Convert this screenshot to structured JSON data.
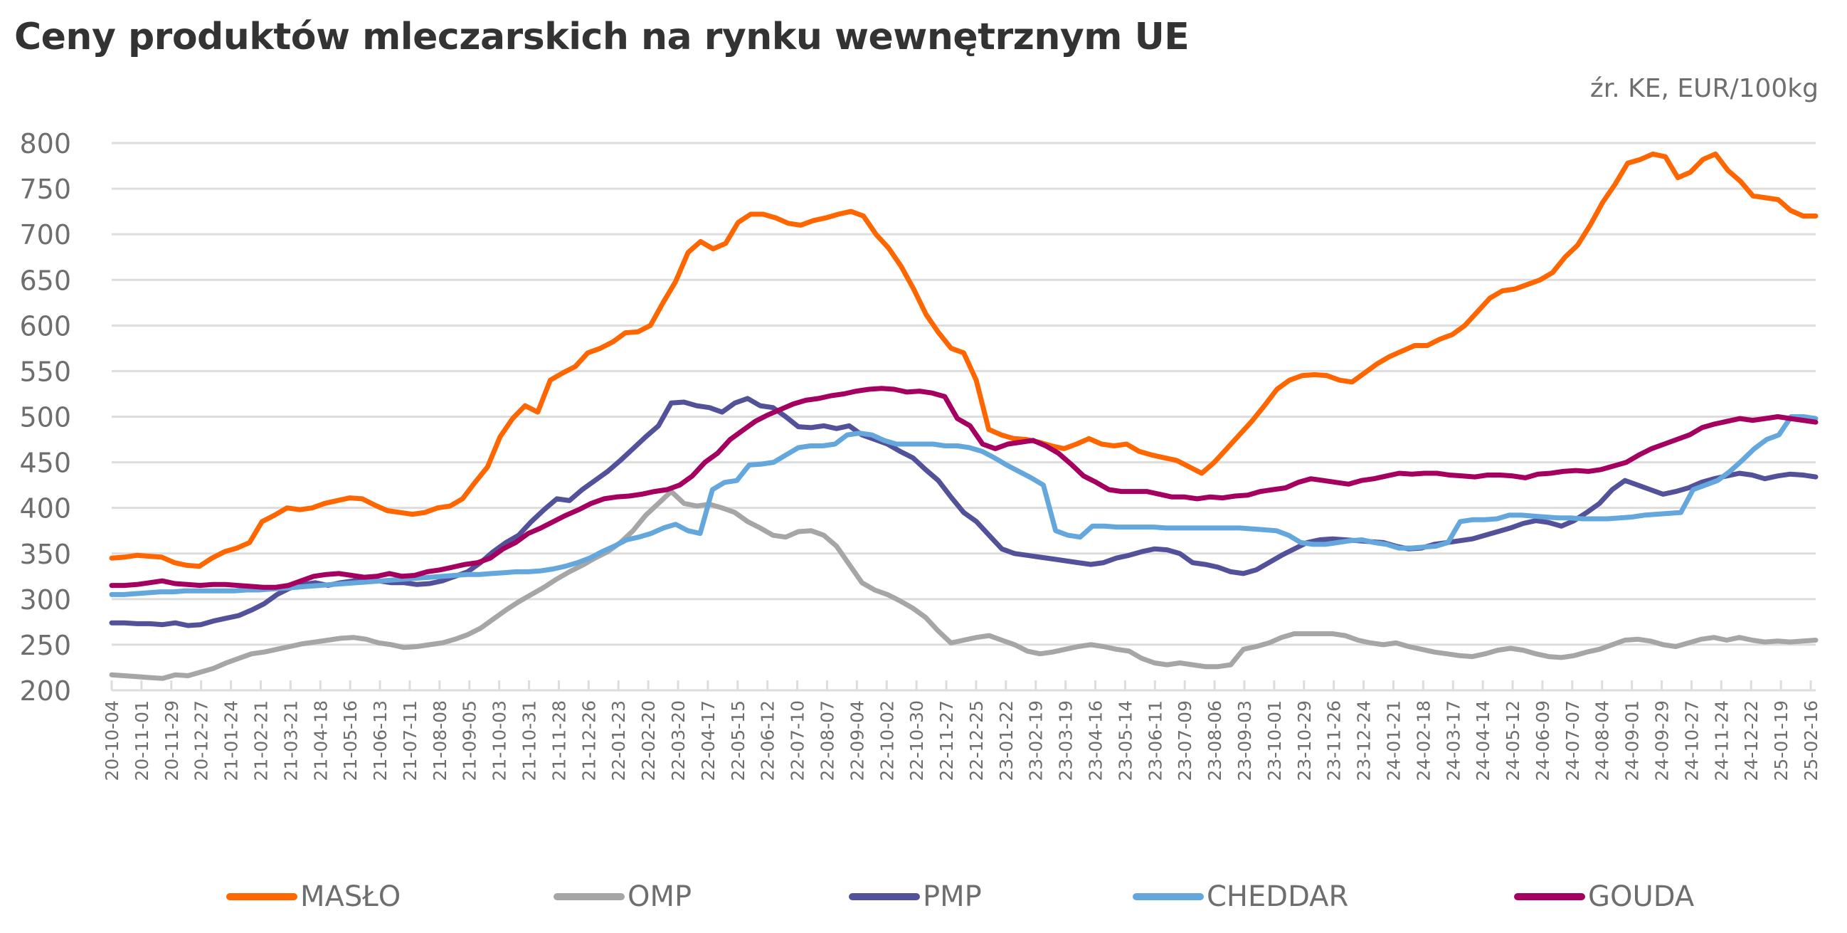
{
  "title": "Ceny produktów mleczarskich na rynku wewnętrznym UE",
  "subtitle": "źr. KE, EUR/100kg",
  "chart_data": {
    "type": "line",
    "title": "Ceny produktów mleczarskich na rynku wewnętrznym UE",
    "subtitle": "źr. KE, EUR/100kg",
    "xlabel": "",
    "ylabel": "EUR/100kg",
    "ylim": [
      200,
      800
    ],
    "yticks": [
      800,
      750,
      700,
      650,
      600,
      550,
      500,
      450,
      400,
      350,
      300,
      250,
      200
    ],
    "grid": true,
    "legend_position": "bottom",
    "x_tick_labels": [
      "20-10-04",
      "20-11-01",
      "20-11-29",
      "20-12-27",
      "21-01-24",
      "21-02-21",
      "21-03-21",
      "21-04-18",
      "21-05-16",
      "21-06-13",
      "21-07-11",
      "21-08-08",
      "21-09-05",
      "21-10-03",
      "21-10-31",
      "21-11-28",
      "21-12-26",
      "22-01-23",
      "22-02-20",
      "22-03-20",
      "22-04-17",
      "22-05-15",
      "22-06-12",
      "22-07-10",
      "22-08-07",
      "22-09-04",
      "22-10-02",
      "22-10-30",
      "22-11-27",
      "22-12-25",
      "23-01-22",
      "23-02-19",
      "23-03-19",
      "23-04-16",
      "23-05-14",
      "23-06-11",
      "23-07-09",
      "23-08-06",
      "23-09-03",
      "23-10-01",
      "23-10-29",
      "23-11-26",
      "23-12-24",
      "24-01-21",
      "24-02-18",
      "24-03-17",
      "24-04-14",
      "24-05-12",
      "24-06-09",
      "24-07-07",
      "24-08-04",
      "24-09-01",
      "24-09-29",
      "24-10-27",
      "24-11-24",
      "24-12-22",
      "25-01-19",
      "25-02-16"
    ],
    "series": [
      {
        "name": "MASŁO",
        "color": "#ff6600",
        "values": [
          345,
          346,
          348,
          347,
          346,
          340,
          337,
          336,
          345,
          352,
          356,
          362,
          385,
          392,
          400,
          398,
          400,
          405,
          408,
          411,
          410,
          403,
          397,
          395,
          393,
          395,
          400,
          402,
          410,
          428,
          445,
          478,
          498,
          512,
          505,
          540,
          548,
          555,
          570,
          575,
          582,
          592,
          593,
          600,
          625,
          648,
          680,
          692,
          684,
          690,
          713,
          722,
          722,
          718,
          712,
          710,
          715,
          718,
          722,
          725,
          720,
          700,
          685,
          665,
          640,
          612,
          592,
          575,
          570,
          540,
          486,
          480,
          476,
          475,
          472,
          468,
          465,
          470,
          476,
          470,
          468,
          470,
          462,
          458,
          455,
          452,
          445,
          438,
          450,
          465,
          480,
          495,
          512,
          530,
          540,
          545,
          546,
          545,
          540,
          538,
          548,
          558,
          566,
          572,
          578,
          578,
          585,
          590,
          600,
          615,
          630,
          638,
          640,
          645,
          650,
          658,
          675,
          688,
          710,
          735,
          755,
          778,
          782,
          788,
          785,
          762,
          768,
          782,
          788,
          770,
          758,
          742,
          740,
          738,
          726,
          720,
          720
        ]
      },
      {
        "name": "OMP",
        "color": "#a6a6a6",
        "values": [
          217,
          216,
          215,
          214,
          213,
          217,
          216,
          220,
          224,
          230,
          235,
          240,
          242,
          245,
          248,
          251,
          253,
          255,
          257,
          258,
          256,
          252,
          250,
          247,
          248,
          250,
          252,
          256,
          261,
          268,
          278,
          288,
          297,
          305,
          313,
          322,
          330,
          337,
          345,
          352,
          362,
          375,
          392,
          405,
          418,
          405,
          402,
          404,
          400,
          395,
          385,
          378,
          370,
          368,
          374,
          375,
          370,
          358,
          338,
          318,
          310,
          305,
          298,
          290,
          280,
          265,
          252,
          255,
          258,
          260,
          255,
          250,
          243,
          240,
          242,
          245,
          248,
          250,
          248,
          245,
          243,
          235,
          230,
          228,
          230,
          228,
          226,
          226,
          228,
          245,
          248,
          252,
          258,
          262,
          262,
          262,
          262,
          260,
          255,
          252,
          250,
          252,
          248,
          245,
          242,
          240,
          238,
          237,
          240,
          244,
          246,
          244,
          240,
          237,
          236,
          238,
          242,
          245,
          250,
          255,
          256,
          254,
          250,
          248,
          252,
          256,
          258,
          255,
          258,
          255,
          253,
          254,
          253,
          254,
          255
        ]
      },
      {
        "name": "PMP",
        "color": "#525199",
        "values": [
          274,
          274,
          273,
          273,
          272,
          274,
          271,
          272,
          276,
          279,
          282,
          288,
          295,
          305,
          312,
          316,
          318,
          315,
          318,
          320,
          322,
          320,
          318,
          318,
          316,
          317,
          320,
          325,
          330,
          340,
          352,
          362,
          370,
          385,
          398,
          410,
          408,
          420,
          430,
          440,
          452,
          465,
          478,
          490,
          515,
          516,
          512,
          510,
          505,
          515,
          520,
          512,
          510,
          500,
          489,
          488,
          490,
          487,
          490,
          480,
          475,
          470,
          462,
          455,
          442,
          430,
          412,
          395,
          385,
          370,
          355,
          350,
          348,
          346,
          344,
          342,
          340,
          338,
          340,
          345,
          348,
          352,
          355,
          354,
          350,
          340,
          338,
          335,
          330,
          328,
          332,
          340,
          348,
          355,
          362,
          365,
          366,
          365,
          364,
          363,
          362,
          358,
          355,
          356,
          360,
          362,
          364,
          366,
          370,
          374,
          378,
          383,
          386,
          384,
          380,
          386,
          395,
          405,
          420,
          430,
          425,
          420,
          415,
          418,
          422,
          428,
          432,
          435,
          438,
          436,
          432,
          435,
          437,
          436,
          434
        ]
      },
      {
        "name": "CHEDDAR",
        "color": "#63a7dd",
        "values": [
          305,
          305,
          306,
          307,
          308,
          308,
          309,
          309,
          309,
          309,
          309,
          310,
          310,
          311,
          312,
          313,
          314,
          315,
          316,
          317,
          318,
          319,
          320,
          321,
          322,
          323,
          324,
          325,
          326,
          327,
          327,
          328,
          329,
          330,
          330,
          331,
          333,
          336,
          340,
          345,
          352,
          358,
          365,
          368,
          372,
          378,
          382,
          375,
          372,
          420,
          428,
          430,
          447,
          448,
          450,
          458,
          466,
          468,
          468,
          470,
          480,
          482,
          480,
          474,
          470,
          470,
          470,
          470,
          468,
          468,
          466,
          462,
          455,
          447,
          440,
          433,
          425,
          375,
          370,
          368,
          380,
          380,
          379,
          379,
          379,
          379,
          378,
          378,
          378,
          378,
          378,
          378,
          378,
          377,
          376,
          375,
          370,
          362,
          360,
          360,
          362,
          364,
          365,
          362,
          360,
          356,
          356,
          357,
          358,
          362,
          385,
          387,
          387,
          388,
          392,
          392,
          391,
          390,
          389,
          389,
          388,
          388,
          388,
          389,
          390,
          392,
          393,
          394,
          395,
          420,
          425,
          430,
          440,
          452,
          465,
          475,
          480,
          500,
          500,
          498
        ]
      },
      {
        "name": "GOUDA",
        "color": "#a5005f",
        "values": [
          315,
          315,
          316,
          318,
          320,
          317,
          316,
          315,
          316,
          316,
          315,
          314,
          313,
          313,
          315,
          320,
          325,
          327,
          328,
          326,
          324,
          325,
          328,
          325,
          326,
          330,
          332,
          335,
          338,
          340,
          345,
          355,
          362,
          372,
          378,
          385,
          392,
          398,
          405,
          410,
          412,
          413,
          415,
          418,
          420,
          425,
          435,
          450,
          460,
          475,
          485,
          495,
          502,
          508,
          514,
          518,
          520,
          523,
          525,
          528,
          530,
          531,
          530,
          527,
          528,
          526,
          522,
          498,
          490,
          470,
          465,
          470,
          472,
          474,
          468,
          460,
          448,
          435,
          428,
          420,
          418,
          418,
          418,
          415,
          412,
          412,
          410,
          412,
          411,
          413,
          414,
          418,
          420,
          422,
          428,
          432,
          430,
          428,
          426,
          430,
          432,
          435,
          438,
          437,
          438,
          438,
          436,
          435,
          434,
          436,
          436,
          435,
          433,
          437,
          438,
          440,
          441,
          440,
          442,
          446,
          450,
          458,
          465,
          470,
          475,
          480,
          488,
          492,
          495,
          498,
          496,
          498,
          500,
          498,
          496,
          494
        ]
      }
    ]
  },
  "legend": [
    {
      "label": "MASŁO",
      "color": "#ff6600"
    },
    {
      "label": "OMP",
      "color": "#a6a6a6"
    },
    {
      "label": "PMP",
      "color": "#525199"
    },
    {
      "label": "CHEDDAR",
      "color": "#63a7dd"
    },
    {
      "label": "GOUDA",
      "color": "#a5005f"
    }
  ]
}
